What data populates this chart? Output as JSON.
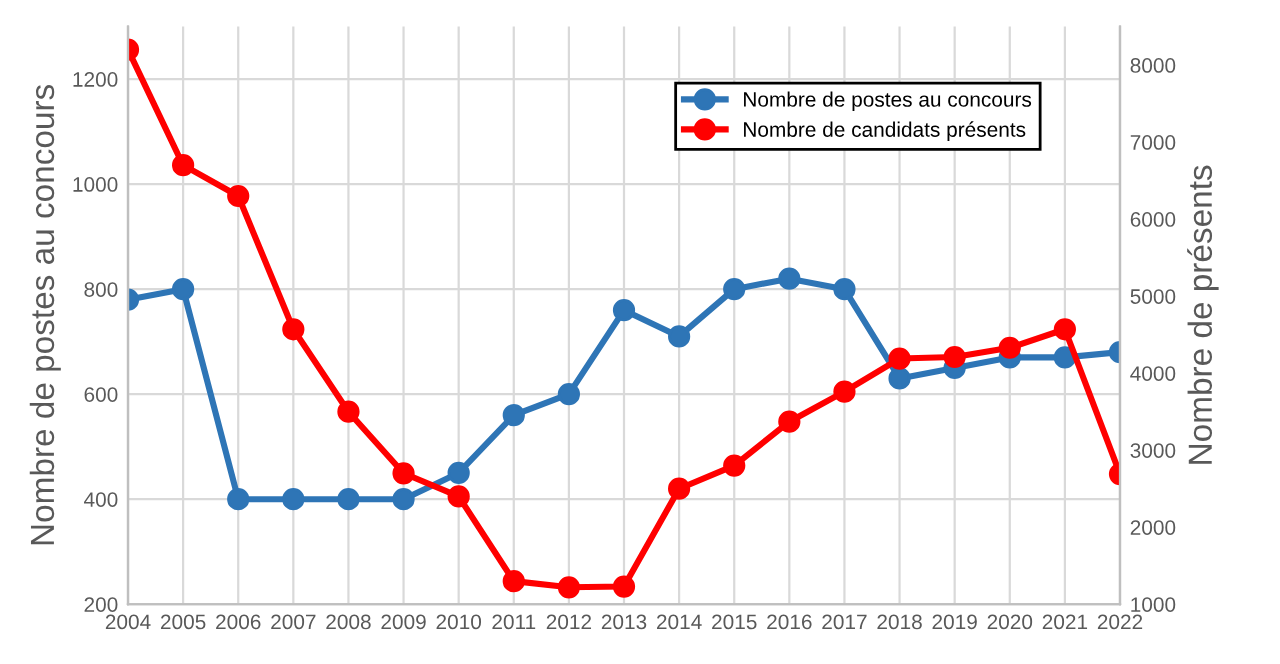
{
  "chart_data": {
    "type": "line",
    "ylabel": "Nombre de postes au concours",
    "y2label": "Nombre de présents",
    "x": [
      2004,
      2005,
      2006,
      2007,
      2008,
      2009,
      2010,
      2011,
      2012,
      2013,
      2014,
      2015,
      2016,
      2017,
      2018,
      2019,
      2020,
      2021,
      2022
    ],
    "xlim": [
      2004,
      2022
    ],
    "xticks": [
      2004,
      2005,
      2006,
      2007,
      2008,
      2009,
      2010,
      2011,
      2012,
      2013,
      2014,
      2015,
      2016,
      2017,
      2018,
      2019,
      2020,
      2021,
      2022
    ],
    "ylim": [
      200,
      1300
    ],
    "yticks": [
      200,
      400,
      600,
      800,
      1000,
      1200
    ],
    "y2lim": [
      1000,
      8500
    ],
    "y2ticks": [
      1000,
      2000,
      3000,
      4000,
      5000,
      6000,
      7000,
      8000
    ],
    "grid": true,
    "legend": "top right",
    "marker": "circle",
    "line_style": "solid",
    "series": [
      {
        "name": "Nombre de postes au concours",
        "color": "#2e75b6",
        "values": [
          780,
          800,
          400,
          400,
          400,
          400,
          450,
          560,
          600,
          760,
          710,
          800,
          820,
          800,
          630,
          650,
          670,
          670,
          680
        ]
      },
      {
        "name": "Nombre de candidats présents",
        "color": "#ff0000",
        "axis": "y2",
        "values": [
          8200,
          6700,
          6300,
          4570,
          3500,
          2700,
          2400,
          1300,
          1220,
          1230,
          2500,
          2800,
          3370,
          3760,
          4190,
          4210,
          4330,
          4570,
          2690
        ]
      }
    ]
  }
}
